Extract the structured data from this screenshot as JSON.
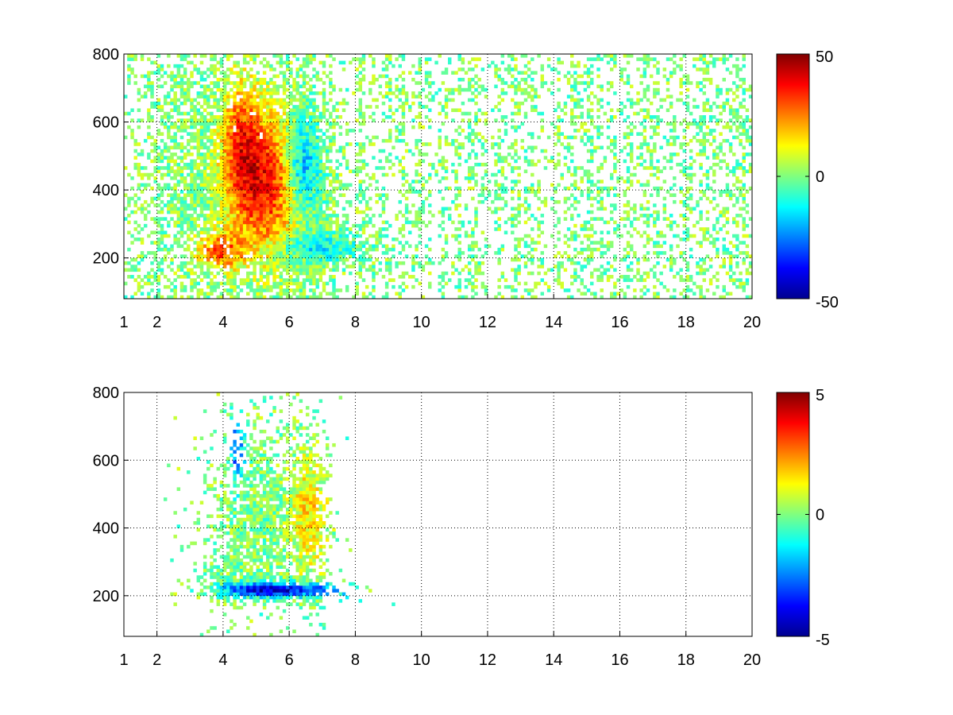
{
  "chart_data": [
    {
      "type": "heatmap",
      "title": "",
      "xlabel": "",
      "ylabel": "",
      "xlim": [
        1,
        20
      ],
      "ylim": [
        80,
        800
      ],
      "x_ticks": [
        1,
        2,
        4,
        6,
        8,
        10,
        12,
        14,
        16,
        18,
        20
      ],
      "y_ticks": [
        200,
        400,
        600,
        800
      ],
      "grid": true,
      "colormap": "jet",
      "colorbar": {
        "clim": [
          -50,
          50
        ],
        "ticks": [
          50,
          0,
          -50
        ],
        "placement": "right"
      },
      "nan_color": "#ffffff",
      "data_features": [
        {
          "label": "positive ridge",
          "x": [
            3.5,
            6.0
          ],
          "y": [
            180,
            620
          ],
          "peak_value": 40
        },
        {
          "label": "negative band",
          "x": [
            6.0,
            7.2
          ],
          "y": [
            200,
            620
          ],
          "peak_value": -20
        },
        {
          "label": "lower tail",
          "x": [
            6.5,
            9.0
          ],
          "y": [
            190,
            260
          ],
          "peak_value": -10
        },
        {
          "label": "sparse columns",
          "x": [
            9.0,
            20.0
          ],
          "y": [
            80,
            800
          ],
          "peak_value": 5
        }
      ]
    },
    {
      "type": "heatmap",
      "title": "",
      "xlabel": "",
      "ylabel": "",
      "xlim": [
        1,
        20
      ],
      "ylim": [
        80,
        800
      ],
      "x_ticks": [
        1,
        2,
        4,
        6,
        8,
        10,
        12,
        14,
        16,
        18,
        20
      ],
      "y_ticks": [
        200,
        400,
        600,
        800
      ],
      "grid": true,
      "colormap": "jet",
      "colorbar": {
        "clim": [
          -5,
          5
        ],
        "ticks": [
          5,
          0,
          -5
        ],
        "placement": "right"
      },
      "nan_color": "#ffffff",
      "data_features": [
        {
          "label": "main cloud",
          "x": [
            3.5,
            6.5
          ],
          "y": [
            200,
            720
          ],
          "peak_value": 0.5
        },
        {
          "label": "low band",
          "x": [
            4.3,
            7.5
          ],
          "y": [
            200,
            240
          ],
          "peak_value": -4.5
        },
        {
          "label": "right lobe",
          "x": [
            6.0,
            7.2
          ],
          "y": [
            380,
            780
          ],
          "peak_value": 1.5
        }
      ]
    }
  ]
}
